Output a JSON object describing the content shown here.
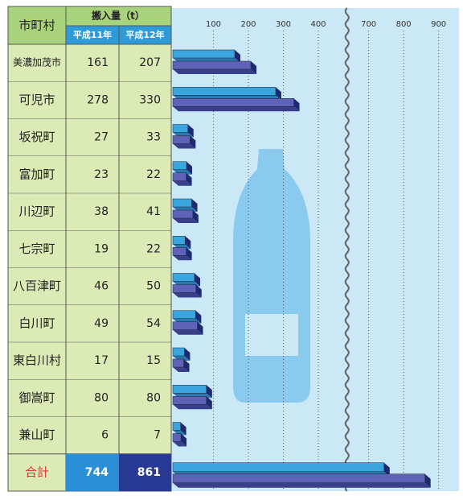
{
  "chart_data": {
    "type": "bar",
    "orientation": "horizontal",
    "header_category": "市町村",
    "header_value": "搬入量（t）",
    "categories": [
      "美濃加茂市",
      "可児市",
      "坂祝町",
      "富加町",
      "川辺町",
      "七宗町",
      "八百津町",
      "白川町",
      "東白川村",
      "御嵩町",
      "兼山町",
      "合計"
    ],
    "series": [
      {
        "name": "平成11年",
        "color": "#3aa6de",
        "values": [
          161,
          278,
          27,
          23,
          38,
          19,
          46,
          49,
          17,
          80,
          6,
          744
        ]
      },
      {
        "name": "平成12年",
        "color": "#5f63b8",
        "values": [
          207,
          330,
          33,
          22,
          41,
          22,
          50,
          54,
          15,
          80,
          7,
          861
        ]
      }
    ],
    "xlim": [
      0,
      950
    ],
    "xticks": [
      100,
      200,
      300,
      400,
      700,
      800,
      900
    ],
    "axis_break": [
      480,
      636
    ],
    "grid": true
  }
}
